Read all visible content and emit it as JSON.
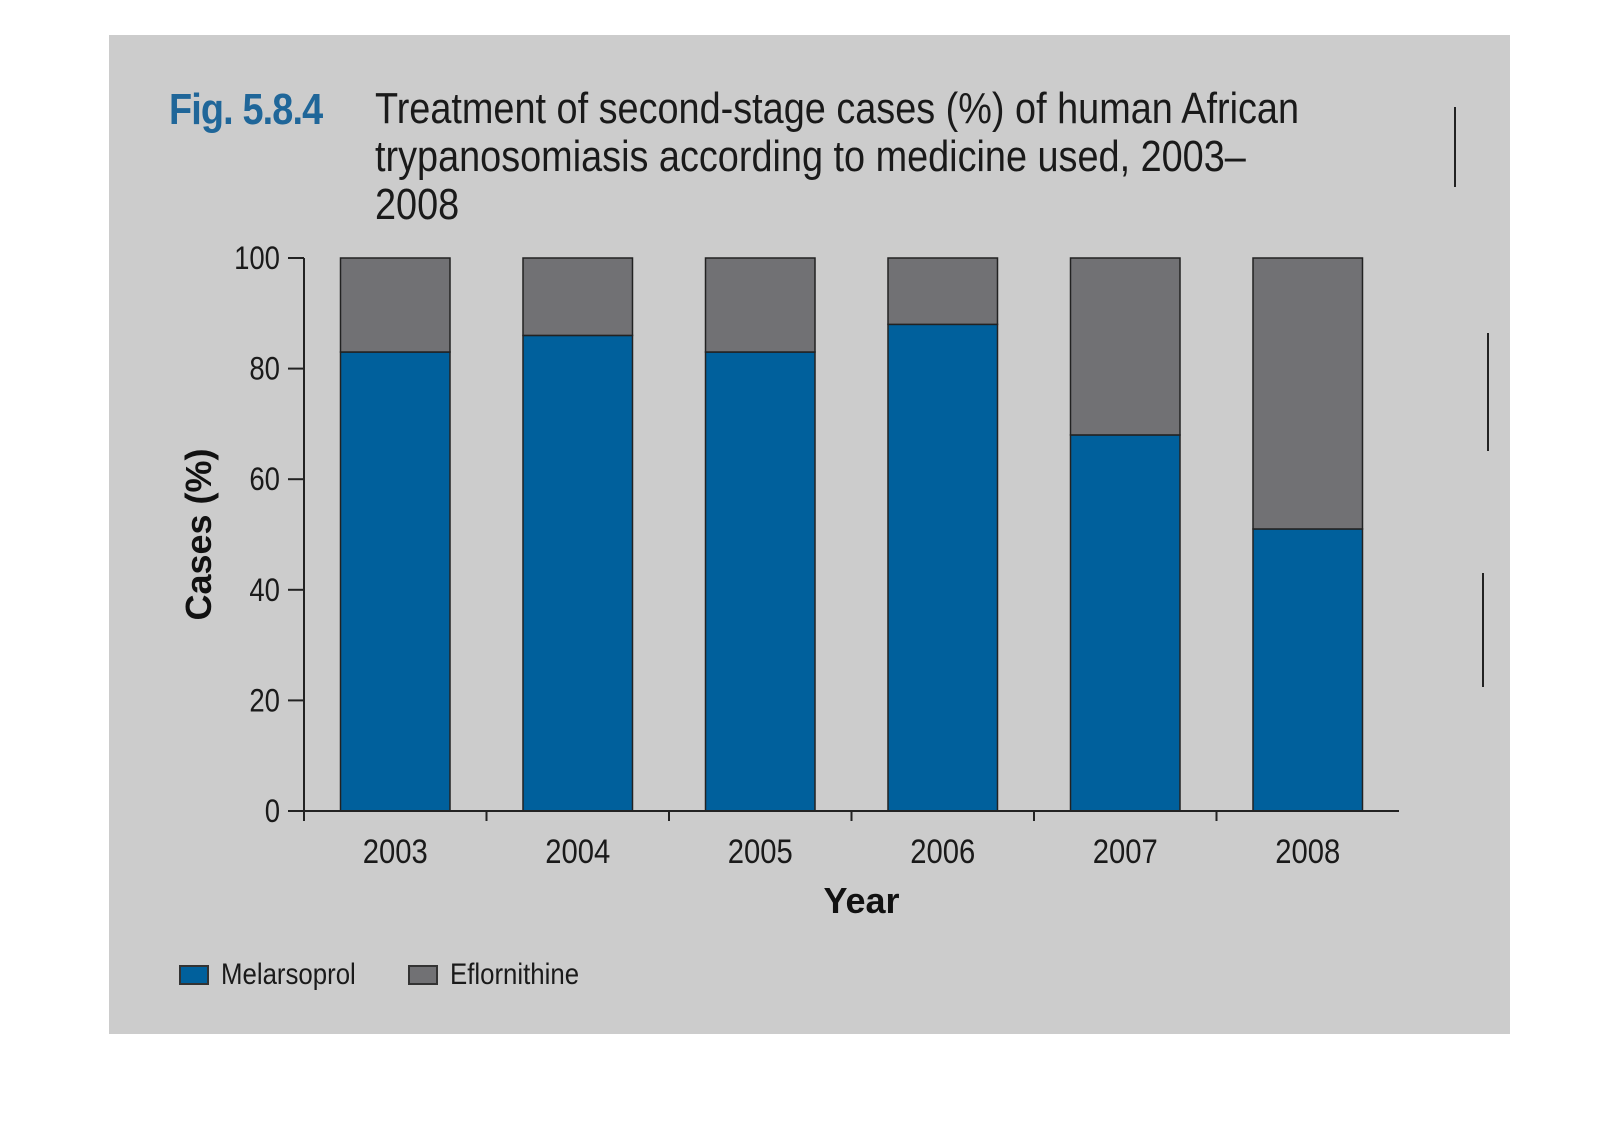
{
  "figure": {
    "label": "Fig. 5.8.4",
    "title": "Treatment of second-stage cases (%) of human African trypanosomiasis according to medicine used, 2003–2008"
  },
  "colors": {
    "label": "#1f6699",
    "melarsoprol": "#00609c",
    "eflornithine": "#717174",
    "axis": "#222222"
  },
  "chart_data": {
    "type": "bar",
    "stacked": true,
    "categories": [
      "2003",
      "2004",
      "2005",
      "2006",
      "2007",
      "2008"
    ],
    "series": [
      {
        "name": "Melarsoprol",
        "values": [
          83,
          86,
          83,
          88,
          68,
          51
        ]
      },
      {
        "name": "Eflornithine",
        "values": [
          17,
          14,
          17,
          12,
          32,
          49
        ]
      }
    ],
    "xlabel": "Year",
    "ylabel": "Cases (%)",
    "ylim": [
      0,
      100
    ],
    "yticks": [
      0,
      20,
      40,
      60,
      80,
      100
    ],
    "grid": false,
    "legend_position": "bottom-left"
  },
  "legend": {
    "items": [
      {
        "label": "Melarsoprol"
      },
      {
        "label": "Eflornithine"
      }
    ]
  }
}
